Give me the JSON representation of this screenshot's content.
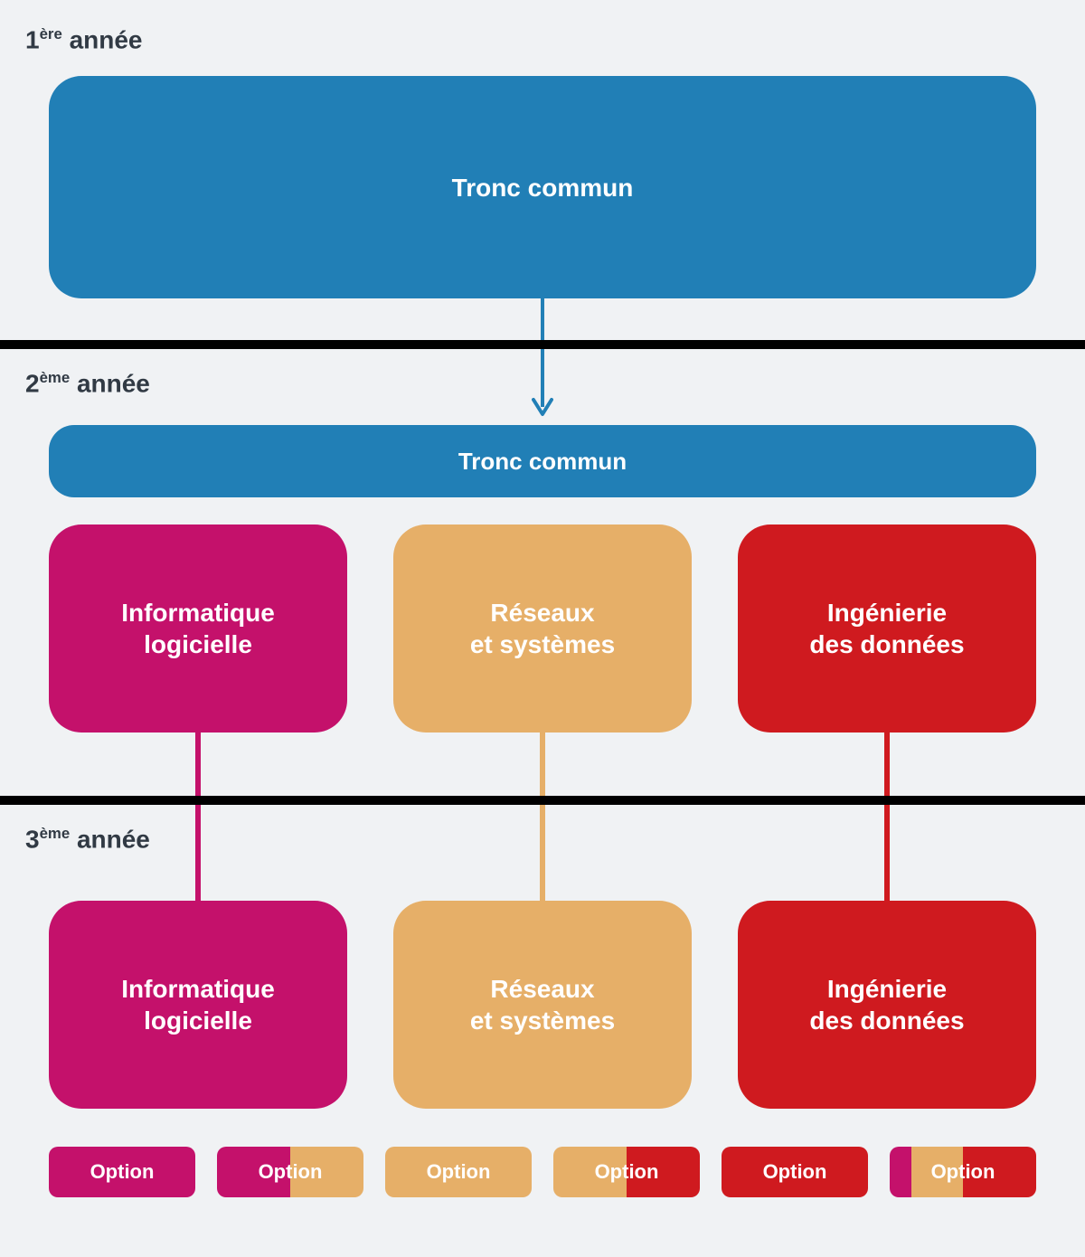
{
  "diagram": {
    "type": "flowchart",
    "background": "#f0f2f4",
    "text_color_box": "#ffffff",
    "heading_color": "#313a44",
    "divider_color": "#000000",
    "colors": {
      "blue": "#217fb6",
      "magenta": "#c4116b",
      "sand": "#e6af68",
      "red": "#cf1a1f"
    },
    "years": {
      "y1": {
        "num": "1",
        "suffix": "ère",
        "label": "année"
      },
      "y2": {
        "num": "2",
        "suffix": "ème",
        "label": "année"
      },
      "y3": {
        "num": "3",
        "suffix": "ème",
        "label": "année"
      }
    },
    "boxes": {
      "tronc1": "Tronc commun",
      "tronc2": "Tronc commun",
      "track1_y2": "Informatique\nlogicielle",
      "track2_y2": "Réseaux\net systèmes",
      "track3_y2": "Ingénierie\ndes données",
      "track1_y3": "Informatique\nlogicielle",
      "track2_y3": "Réseaux\net systèmes",
      "track3_y3": "Ingénierie\ndes données"
    },
    "option_label": "Option",
    "options": [
      {
        "colors": [
          "magenta"
        ],
        "widths": [
          1
        ]
      },
      {
        "colors": [
          "magenta",
          "sand"
        ],
        "widths": [
          0.5,
          0.5
        ]
      },
      {
        "colors": [
          "sand"
        ],
        "widths": [
          1
        ]
      },
      {
        "colors": [
          "sand",
          "red"
        ],
        "widths": [
          0.5,
          0.5
        ]
      },
      {
        "colors": [
          "red"
        ],
        "widths": [
          1
        ]
      },
      {
        "colors": [
          "magenta",
          "sand",
          "red"
        ],
        "widths": [
          0.15,
          0.35,
          0.5
        ]
      }
    ],
    "arrow_color": "#217fb6",
    "fonts": {
      "heading_size": 28,
      "box_size": 28,
      "option_size": 22
    },
    "border_radius": 36
  }
}
